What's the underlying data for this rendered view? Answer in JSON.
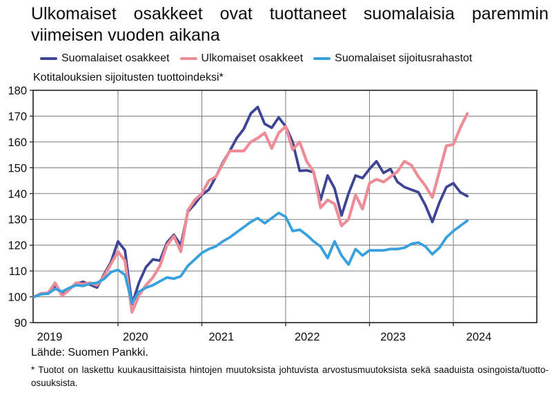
{
  "title": "Ulkomaiset osakkeet ovat tuottaneet suomalaisia paremmin viimeisen vuoden aikana",
  "footer": {
    "source": "Lähde: Suomen Pankki.",
    "footnote": "* Tuotot on laskettu kuukausittaisista hintojen muutoksista johtuvista arvostusmuutoksista sekä saaduista osingoista/tuotto-osuuksista."
  },
  "chart_data": {
    "type": "line",
    "subtitle": "Kotitalouksien sijoitusten tuottoindeksi*",
    "frequency": "monthly",
    "x_start": "2019-01",
    "x_end": "2024-03",
    "ylim": [
      90,
      180
    ],
    "yticks": [
      90,
      100,
      110,
      120,
      130,
      140,
      150,
      160,
      170,
      180
    ],
    "xtick_years": [
      "2019",
      "2020",
      "2021",
      "2022",
      "2023",
      "2024"
    ],
    "grid": true,
    "legend_position": "top",
    "grid_color": "#7a7a7a",
    "axis_color": "#2d2d2d",
    "series": [
      {
        "name": "Suomalaiset osakkeet",
        "color": "#3E4595",
        "values": [
          100,
          101.2,
          101.2,
          104,
          101.6,
          103,
          105.1,
          105.8,
          104.7,
          103.6,
          108.7,
          113.5,
          121.5,
          118,
          97,
          105.5,
          111.5,
          114.5,
          114,
          121,
          124,
          120,
          133,
          136,
          139.5,
          141.5,
          146.5,
          152,
          156.5,
          161.5,
          165,
          171,
          173.5,
          167,
          165.5,
          169.5,
          166,
          160,
          148.8,
          149,
          148.3,
          137.5,
          147,
          142,
          131.5,
          140,
          147,
          146,
          149.5,
          152.5,
          148,
          149.5,
          144.5,
          142.5,
          141.5,
          140.5,
          135.5,
          129,
          136.5,
          142.5,
          144,
          140.5,
          139
        ]
      },
      {
        "name": "Ulkomaiset osakkeet",
        "color": "#EE8D97",
        "values": [
          100,
          101.3,
          101.5,
          105.4,
          100.3,
          102.7,
          105.4,
          104.9,
          105.4,
          104.5,
          108,
          112.7,
          117.5,
          114,
          94,
          100.5,
          104.5,
          107.5,
          112,
          120,
          123.5,
          117.5,
          133.5,
          137.5,
          140,
          145,
          146.5,
          151.5,
          156.5,
          156.5,
          156.5,
          160,
          161.5,
          163.5,
          157.5,
          163.5,
          166,
          157,
          160,
          152.5,
          148.5,
          134.5,
          137.5,
          136,
          127.5,
          130,
          139.5,
          134,
          144,
          145.5,
          144.5,
          146.5,
          148.5,
          152.5,
          151,
          146.5,
          143,
          138.5,
          148.5,
          158.5,
          159,
          165.5,
          171
        ]
      },
      {
        "name": "Suomalaiset sijoitusrahastot",
        "color": "#38A1DD",
        "values": [
          100,
          101,
          101.2,
          103.1,
          102,
          103.4,
          104.5,
          104.2,
          105.1,
          105.4,
          106.9,
          109.6,
          110.4,
          108.5,
          97.5,
          102,
          103.5,
          104.5,
          106,
          107.5,
          107,
          108,
          112,
          114.5,
          117,
          118.5,
          119.5,
          121.5,
          123,
          125,
          127,
          129,
          130.5,
          128.5,
          130.5,
          132.5,
          131,
          125.5,
          126,
          124,
          121.5,
          119.5,
          115,
          121.5,
          116,
          112.5,
          118.5,
          116,
          118,
          118,
          118,
          118.5,
          118.5,
          119,
          120.5,
          121,
          119.5,
          116.5,
          119,
          123,
          125.5,
          127.5,
          129.5
        ]
      }
    ]
  }
}
